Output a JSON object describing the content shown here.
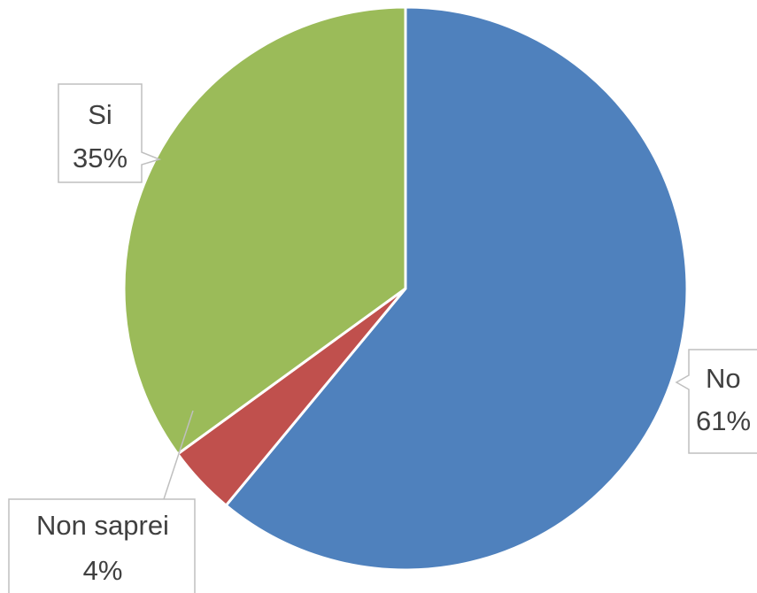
{
  "chart_data": {
    "type": "pie",
    "start_angle_deg": 0,
    "direction": "clockwise",
    "slices": [
      {
        "label": "No",
        "value": 61,
        "value_label": "61%",
        "color": "#4f81bd"
      },
      {
        "label": "Non saprei",
        "value": 4,
        "value_label": "4%",
        "color": "#c0504d"
      },
      {
        "label": "Si",
        "value": 35,
        "value_label": "35%",
        "color": "#9bbb59"
      }
    ],
    "labels": {
      "style": "callout",
      "show": [
        "category name",
        "percentage"
      ]
    }
  }
}
